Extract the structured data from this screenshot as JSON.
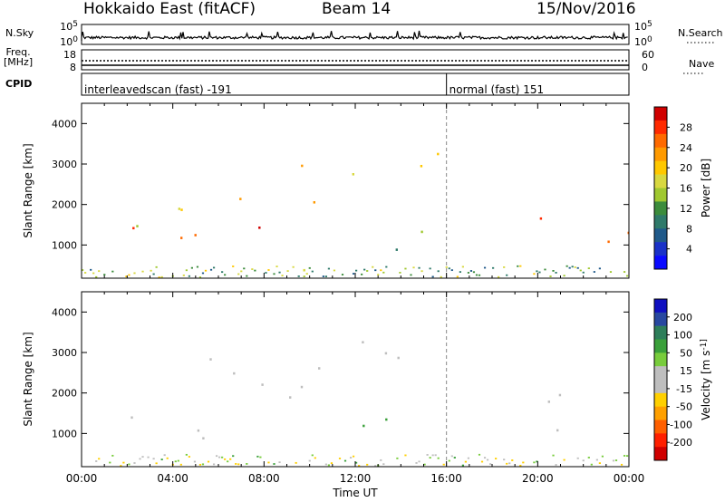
{
  "header": {
    "title": "Hokkaido East (fitACF)",
    "beam": "Beam 14",
    "date": "15/Nov/2016"
  },
  "strip": {
    "nsky_label": "N.Sky",
    "nsky_ticks": [
      "10^5",
      "10^0"
    ],
    "nsearch_label": "N.Search",
    "nsearch_ticks": [
      "10^5",
      "10^0"
    ],
    "freq_label_line1": "Freq.",
    "freq_label_line2": "[MHz]",
    "freq_ticks": [
      "18",
      "8"
    ],
    "nave_label": "Nave",
    "nave_ticks": [
      "60",
      "0"
    ],
    "cpid_label": "CPID",
    "cpid_segments": [
      {
        "label": "interleavedscan (fast) -191",
        "start_hour": 0,
        "end_hour": 16
      },
      {
        "label": "normal (fast) 151",
        "start_hour": 16,
        "end_hour": 24
      }
    ]
  },
  "axes": {
    "y_label": "Slant Range [km]",
    "y_ticks": [
      "4000",
      "3000",
      "2000",
      "1000"
    ],
    "x_ticks": [
      "00:00",
      "04:00",
      "08:00",
      "12:00",
      "16:00",
      "20:00",
      "00:00"
    ],
    "x_label": "Time UT"
  },
  "colorbars": {
    "power": {
      "label": "Power [dB]",
      "ticks": [
        "28",
        "24",
        "20",
        "16",
        "12",
        "8",
        "4"
      ],
      "colors": [
        "#d00000",
        "#ff2a00",
        "#ff6a00",
        "#ff9a00",
        "#ffc800",
        "#d8d840",
        "#a0c830",
        "#3c8c3c",
        "#2f7a6a",
        "#205a8a",
        "#1a32c8",
        "#0a0aff"
      ]
    },
    "velocity": {
      "label": "Velocity [m s^-1]",
      "ticks": [
        "200",
        "100",
        "50",
        "15",
        "-15",
        "-50",
        "-100",
        "-200"
      ],
      "colors": [
        "#1010c0",
        "#2848a0",
        "#2e7e5a",
        "#3aa03a",
        "#78cc3c",
        "#bebebe",
        "#bebebe",
        "#ffd000",
        "#ffa000",
        "#ff6000",
        "#ff2000",
        "#d00000"
      ]
    }
  },
  "chart_data": {
    "type": "heatmap",
    "title": "Hokkaido East (fitACF)",
    "xlabel": "Time UT",
    "ylabel": "Slant Range [km]",
    "xlim_hours": [
      0,
      24
    ],
    "ylim_km": [
      180,
      4500
    ],
    "panels": [
      {
        "name": "Power [dB]",
        "echo_regions": [
          {
            "t0": 0.0,
            "t1": 6.5,
            "r0": 900,
            "r1": 1500,
            "value": 26
          },
          {
            "t0": 0.0,
            "t1": 5.5,
            "r0": 1300,
            "r1": 2100,
            "value": 18
          },
          {
            "t0": 5.5,
            "t1": 8.0,
            "r0": 1200,
            "r1": 2500,
            "value": 27
          },
          {
            "t0": 8.0,
            "t1": 10.5,
            "r0": 2000,
            "r1": 3200,
            "value": 24
          },
          {
            "t0": 11.8,
            "t1": 15.8,
            "r0": 2400,
            "r1": 3600,
            "value": 22
          },
          {
            "t0": 12.0,
            "t1": 16.0,
            "r0": 700,
            "r1": 1500,
            "value": 12
          },
          {
            "t0": 19.8,
            "t1": 24.0,
            "r0": 1000,
            "r1": 2000,
            "value": 27
          },
          {
            "t0": 7.0,
            "t1": 11.5,
            "r0": 300,
            "r1": 600,
            "value": 14
          }
        ]
      },
      {
        "name": "Velocity [m s^-1]",
        "echo_regions": [
          {
            "t0": 0.0,
            "t1": 6.5,
            "r0": 900,
            "r1": 1500,
            "value": 0
          },
          {
            "t0": 5.5,
            "t1": 10.5,
            "r0": 1200,
            "r1": 3100,
            "value": 0
          },
          {
            "t0": 11.8,
            "t1": 15.8,
            "r0": 2400,
            "r1": 3600,
            "value": 0
          },
          {
            "t0": 12.0,
            "t1": 16.0,
            "r0": 700,
            "r1": 1500,
            "value": 40
          },
          {
            "t0": 19.8,
            "t1": 24.0,
            "r0": 1000,
            "r1": 2000,
            "value": 0
          },
          {
            "t0": 10.5,
            "t1": 12.5,
            "r0": 300,
            "r1": 550,
            "value": -40
          }
        ]
      }
    ]
  }
}
